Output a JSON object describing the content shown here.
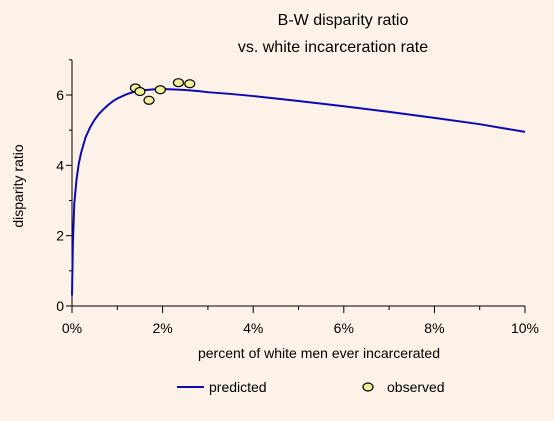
{
  "chart_data": {
    "type": "line",
    "title": "B-W disparity ratio",
    "subtitle": "vs. white incarceration rate",
    "xlabel": "percent of white men ever incarcerated",
    "ylabel": "disparity ratio",
    "xlim": [
      0,
      10
    ],
    "ylim": [
      0,
      7
    ],
    "x_ticks": [
      0,
      2,
      4,
      6,
      8,
      10
    ],
    "x_tick_labels": [
      "0%",
      "2%",
      "4%",
      "6%",
      "8%",
      "10%"
    ],
    "y_ticks": [
      0,
      2,
      4,
      6
    ],
    "y_tick_labels": [
      "0",
      "2",
      "4",
      "6"
    ],
    "grid": false,
    "legend_position": "bottom",
    "series": [
      {
        "name": "predicted",
        "kind": "line",
        "color": "#0a0ab4",
        "x": [
          0.0,
          0.02,
          0.05,
          0.1,
          0.15,
          0.2,
          0.3,
          0.4,
          0.5,
          0.6,
          0.7,
          0.8,
          0.9,
          1.0,
          1.2,
          1.4,
          1.6,
          1.8,
          2.0,
          2.2,
          2.4,
          2.6,
          2.8,
          3.0,
          3.5,
          4.0,
          4.5,
          5.0,
          6.0,
          7.0,
          8.0,
          9.0,
          10.0
        ],
        "y": [
          0.3,
          1.8,
          2.9,
          3.6,
          4.05,
          4.35,
          4.8,
          5.08,
          5.3,
          5.47,
          5.6,
          5.72,
          5.82,
          5.9,
          6.02,
          6.1,
          6.14,
          6.16,
          6.17,
          6.16,
          6.15,
          6.13,
          6.11,
          6.08,
          6.03,
          5.97,
          5.9,
          5.83,
          5.68,
          5.52,
          5.35,
          5.17,
          4.95
        ]
      },
      {
        "name": "observed",
        "kind": "scatter",
        "marker_color": "#f3f09a",
        "x": [
          1.4,
          1.5,
          1.7,
          1.95,
          2.35,
          2.6
        ],
        "y": [
          6.2,
          6.1,
          5.85,
          6.15,
          6.35,
          6.32
        ]
      }
    ]
  }
}
